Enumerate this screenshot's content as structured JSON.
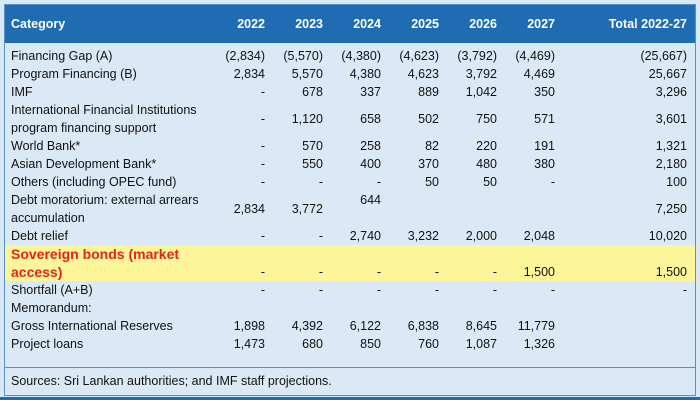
{
  "header": {
    "category": "Category",
    "years": [
      "2022",
      "2023",
      "2024",
      "2025",
      "2026",
      "2027"
    ],
    "total": "Total 2022-27"
  },
  "rows": [
    {
      "label": "Financing Gap (A)",
      "values": [
        "(2,834)",
        "(5,570)",
        "(4,380)",
        "(4,623)",
        "(3,792)",
        "(4,469)"
      ],
      "total": "(25,667)"
    },
    {
      "label": "Program Financing (B)",
      "values": [
        "2,834",
        "5,570",
        "4,380",
        "4,623",
        "3,792",
        "4,469"
      ],
      "total": "25,667"
    },
    {
      "label": "IMF",
      "values": [
        "-",
        "678",
        "337",
        "889",
        "1,042",
        "350"
      ],
      "total": "3,296"
    },
    {
      "label": "International Financial Institutions program financing support",
      "values": [
        "-",
        "1,120",
        "658",
        "502",
        "750",
        "571"
      ],
      "total": "3,601"
    },
    {
      "label": "World Bank*",
      "values": [
        "-",
        "570",
        "258",
        "82",
        "220",
        "191"
      ],
      "total": "1,321"
    },
    {
      "label": "Asian Development Bank*",
      "values": [
        "-",
        "550",
        "400",
        "370",
        "480",
        "380"
      ],
      "total": "2,180"
    },
    {
      "label": "Others (including OPEC fund)",
      "values": [
        "-",
        "-",
        "-",
        "50",
        "50",
        "-"
      ],
      "total": "100"
    },
    {
      "label": "Debt moratorium: external arrears accumulation",
      "values": [
        "2,834",
        "3,772",
        "644",
        "",
        "",
        ""
      ],
      "total": "7,250"
    },
    {
      "label": "Debt relief",
      "values": [
        "-",
        "-",
        "2,740",
        "3,232",
        "2,000",
        "2,048"
      ],
      "total": "10,020"
    },
    {
      "label": "Sovereign bonds (market access)",
      "values": [
        "-",
        "-",
        "-",
        "-",
        "-",
        "1,500"
      ],
      "total": "1,500"
    },
    {
      "label": "Shortfall (A+B)",
      "values": [
        "-",
        "-",
        "-",
        "-",
        "-",
        "-"
      ],
      "total": "-"
    },
    {
      "label": "Memorandum:",
      "values": [
        "",
        "",
        "",
        "",
        "",
        ""
      ],
      "total": ""
    },
    {
      "label": "Gross International Reserves",
      "values": [
        "1,898",
        "4,392",
        "6,122",
        "6,838",
        "8,645",
        "11,779"
      ],
      "total": ""
    },
    {
      "label": "Project loans",
      "values": [
        "1,473",
        "680",
        "850",
        "760",
        "1,087",
        "1,326"
      ],
      "total": ""
    }
  ],
  "source": "Sources: Sri Lankan authorities; and IMF staff projections."
}
